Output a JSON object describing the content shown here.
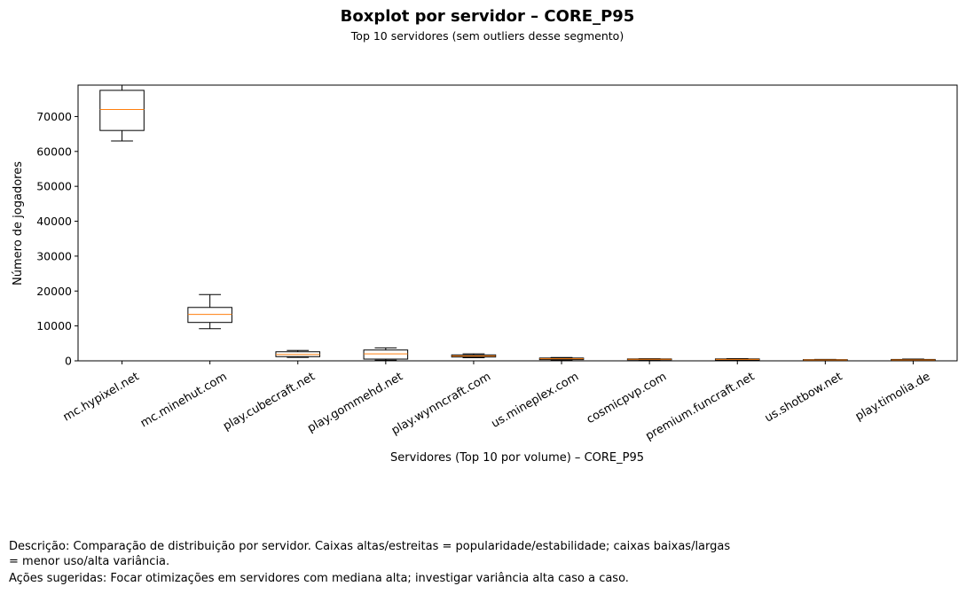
{
  "chart_data": {
    "type": "boxplot",
    "title": "Boxplot por servidor – CORE_P95",
    "subtitle": "Top 10 servidores (sem outliers desse segmento)",
    "xlabel": "Servidores (Top 10 por volume) – CORE_P95",
    "ylabel": "Número de jogadores",
    "ylim": [
      0,
      79000
    ],
    "yticks": [
      0,
      10000,
      20000,
      30000,
      40000,
      50000,
      60000,
      70000
    ],
    "categories": [
      "mc.hypixel.net",
      "mc.minehut.com",
      "play.cubecraft.net",
      "play.gommehd.net",
      "play.wynncraft.com",
      "us.mineplex.com",
      "cosmicpvp.com",
      "premium.funcraft.net",
      "us.shotbow.net",
      "play.timolia.de"
    ],
    "boxes": [
      {
        "whislo": 63000,
        "q1": 66000,
        "med": 72000,
        "q3": 77500,
        "whishi": 79000
      },
      {
        "whislo": 9200,
        "q1": 11000,
        "med": 13300,
        "q3": 15300,
        "whishi": 19000
      },
      {
        "whislo": 1000,
        "q1": 1200,
        "med": 1800,
        "q3": 2600,
        "whishi": 3000
      },
      {
        "whislo": 200,
        "q1": 500,
        "med": 2000,
        "q3": 3100,
        "whishi": 3700
      },
      {
        "whislo": 900,
        "q1": 1100,
        "med": 1400,
        "q3": 1700,
        "whishi": 2000
      },
      {
        "whislo": 200,
        "q1": 350,
        "med": 600,
        "q3": 800,
        "whishi": 950
      },
      {
        "whislo": 300,
        "q1": 350,
        "med": 450,
        "q3": 550,
        "whishi": 600
      },
      {
        "whislo": 200,
        "q1": 250,
        "med": 400,
        "q3": 550,
        "whishi": 650
      },
      {
        "whislo": 100,
        "q1": 150,
        "med": 250,
        "q3": 350,
        "whishi": 400
      },
      {
        "whislo": 100,
        "q1": 150,
        "med": 250,
        "q3": 400,
        "whishi": 500
      }
    ],
    "box_color": "#000000",
    "median_color": "#ff7f0e"
  },
  "notes": {
    "description": "Descrição: Comparação de distribuição por servidor. Caixas altas/estreitas = popularidade/estabilidade; caixas baixas/largas = menor uso/alta variância.",
    "actions": "Ações sugeridas: Focar otimizações em servidores com mediana alta; investigar variância alta caso a caso."
  }
}
